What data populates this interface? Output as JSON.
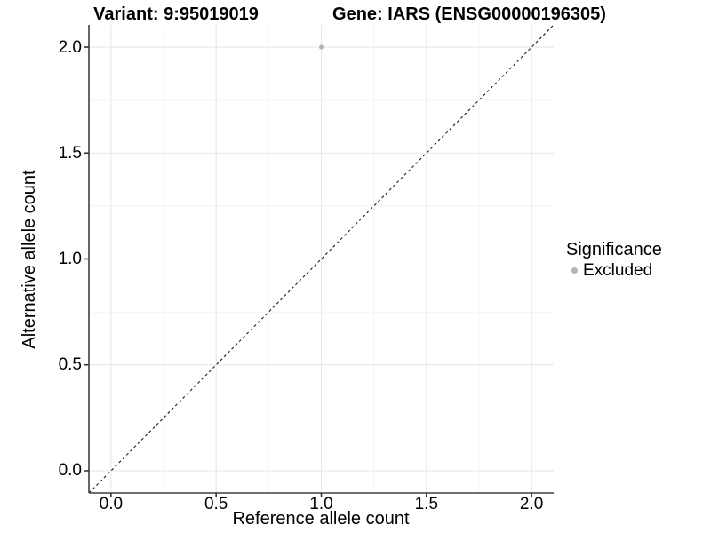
{
  "titles": {
    "variant": "Variant: 9:95019019",
    "gene": "Gene: IARS (ENSG00000196305)"
  },
  "axes": {
    "x_label": "Reference allele count",
    "y_label": "Alternative allele count"
  },
  "legend": {
    "title": "Significance",
    "items": [
      {
        "label": "Excluded",
        "color": "#b4b4b4"
      }
    ]
  },
  "colors": {
    "background": "#ffffff",
    "grid_major": "#e8e8e8",
    "grid_minor": "#f4f4f4",
    "axis_line": "#404040",
    "tick_mark": "#333333",
    "text": "#000000",
    "point": "#b4b4b4",
    "reference_line": "#1a1a1a"
  },
  "chart_data": {
    "type": "scatter",
    "title": "Variant: 9:95019019 — Gene: IARS (ENSG00000196305)",
    "xlabel": "Reference allele count",
    "ylabel": "Alternative allele count",
    "xlim": [
      -0.105,
      2.105
    ],
    "ylim": [
      -0.105,
      2.105
    ],
    "x_ticks": [
      0,
      0.5,
      1,
      1.5,
      2
    ],
    "y_ticks": [
      0,
      0.5,
      1,
      1.5,
      2
    ],
    "x_tick_labels": [
      "0.0",
      "0.5",
      "1.0",
      "1.5",
      "2.0"
    ],
    "y_tick_labels": [
      "0.0",
      "0.5",
      "1.0",
      "1.5",
      "2.0"
    ],
    "x_minor_ticks": [
      0.25,
      0.75,
      1.25,
      1.75
    ],
    "y_minor_ticks": [
      0.25,
      0.75,
      1.25,
      1.75
    ],
    "grid": true,
    "legend_position": "right",
    "series": [
      {
        "name": "Excluded",
        "color": "#b4b4b4",
        "points": [
          {
            "x": 1.0,
            "y": 2.0
          }
        ]
      }
    ],
    "reference_line": {
      "type": "identity",
      "style": "dashed",
      "color": "#1a1a1a"
    }
  }
}
